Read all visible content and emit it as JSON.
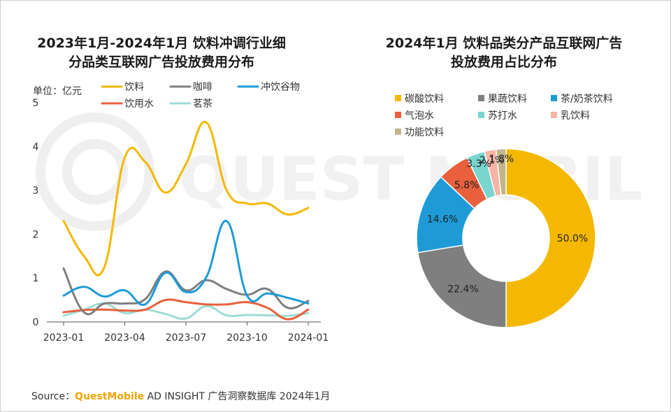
{
  "left_chart_title_line1": "2023年1月-2024年1月 饮料冲调行业细",
  "left_chart_title_line2": "分品类互联网广告投放费用分布",
  "right_chart_title_line1": "2024年1月 饮料品类分产品互联网广告",
  "right_chart_title_line2": "投放费用占比分布",
  "unit_label": "单位：亿元",
  "watermark_text": "QUEST MOBILE",
  "source": {
    "prefix": "Source：",
    "brand": "QuestMobile",
    "suffix": " AD INSIGHT 广告洞察数据库 2024年1月"
  },
  "colors": {
    "yinliao": "#f5b800",
    "kafei": "#7f7f7f",
    "chongyin": "#1e9bd7",
    "yinyongshui": "#e8603c",
    "mingcha": "#9fdcd6"
  },
  "chart_data": [
    {
      "type": "line",
      "title": "2023年1月-2024年1月 饮料冲调行业细分品类互联网广告投放费用分布",
      "ylabel": "单位：亿元",
      "ylim": [
        0,
        5
      ],
      "yticks": [
        0,
        1,
        2,
        3,
        4,
        5
      ],
      "x": [
        "2023-01",
        "2023-02",
        "2023-03",
        "2023-04",
        "2023-05",
        "2023-06",
        "2023-07",
        "2023-08",
        "2023-09",
        "2023-10",
        "2023-11",
        "2023-12",
        "2024-01"
      ],
      "xtick_labels": [
        "2023-01",
        "2023-04",
        "2023-07",
        "2023-10",
        "2024-01"
      ],
      "xtick_index": [
        0,
        3,
        6,
        9,
        12
      ],
      "legend_position": "top",
      "series": [
        {
          "name": "饮料",
          "color": "#f5b800",
          "values": [
            2.3,
            1.5,
            1.25,
            3.75,
            3.65,
            2.95,
            3.6,
            4.55,
            3.0,
            2.7,
            2.7,
            2.45,
            2.6
          ]
        },
        {
          "name": "咖啡",
          "color": "#7f7f7f",
          "values": [
            1.22,
            0.22,
            0.42,
            0.42,
            0.52,
            1.15,
            0.72,
            0.95,
            0.75,
            0.62,
            0.75,
            0.32,
            0.48
          ]
        },
        {
          "name": "冲饮谷物",
          "color": "#1e9bd7",
          "values": [
            0.6,
            0.8,
            0.58,
            0.72,
            0.4,
            1.12,
            0.68,
            1.02,
            2.3,
            0.6,
            0.65,
            0.55,
            0.42
          ]
        },
        {
          "name": "饮用水",
          "color": "#e8603c",
          "values": [
            0.22,
            0.27,
            0.28,
            0.26,
            0.28,
            0.5,
            0.45,
            0.4,
            0.4,
            0.45,
            0.32,
            0.06,
            0.28
          ]
        },
        {
          "name": "茗茶",
          "color": "#9fdcd6",
          "values": [
            0.14,
            0.28,
            0.42,
            0.2,
            0.28,
            0.18,
            0.08,
            0.36,
            0.15,
            0.16,
            0.15,
            0.14,
            0.2
          ]
        }
      ]
    },
    {
      "type": "pie",
      "donut": true,
      "title": "2024年1月 饮料品类分产品互联网广告投放费用占比分布",
      "legend_position": "top",
      "slices": [
        {
          "name": "碳酸饮料",
          "value": 50.0,
          "label": "50.0%",
          "color": "#f5b800"
        },
        {
          "name": "果蔬饮料",
          "value": 22.4,
          "label": "22.4%",
          "color": "#7f7f7f"
        },
        {
          "name": "茶/奶茶饮料",
          "value": 14.6,
          "label": "14.6%",
          "color": "#1e9bd7"
        },
        {
          "name": "气泡水",
          "value": 5.8,
          "label": "5.8%",
          "color": "#e8603c"
        },
        {
          "name": "苏打水",
          "value": 3.3,
          "label": "3.3%",
          "color": "#78d6cf"
        },
        {
          "name": "乳饮料",
          "value": 2.1,
          "label": "2.1%",
          "color": "#f6b5a4"
        },
        {
          "name": "功能饮料",
          "value": 1.8,
          "label": "1.8%",
          "color": "#c2b58a"
        }
      ]
    }
  ]
}
